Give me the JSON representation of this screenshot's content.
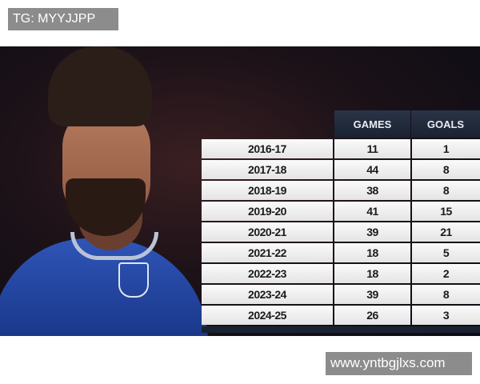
{
  "watermark_top": "TG: MYYJJPP",
  "watermark_bottom": "www.yntbgjlxs.com",
  "table": {
    "headers": [
      "",
      "GAMES",
      "GOALS"
    ],
    "rows": [
      {
        "season": "2016-17",
        "games": "11",
        "goals": "1"
      },
      {
        "season": "2017-18",
        "games": "44",
        "goals": "8"
      },
      {
        "season": "2018-19",
        "games": "38",
        "goals": "8"
      },
      {
        "season": "2019-20",
        "games": "41",
        "goals": "15"
      },
      {
        "season": "2020-21",
        "games": "39",
        "goals": "21"
      },
      {
        "season": "2021-22",
        "games": "18",
        "goals": "5"
      },
      {
        "season": "2022-23",
        "games": "18",
        "goals": "2"
      },
      {
        "season": "2023-24",
        "games": "39",
        "goals": "8"
      },
      {
        "season": "2024-25",
        "games": "26",
        "goals": "3"
      }
    ]
  }
}
